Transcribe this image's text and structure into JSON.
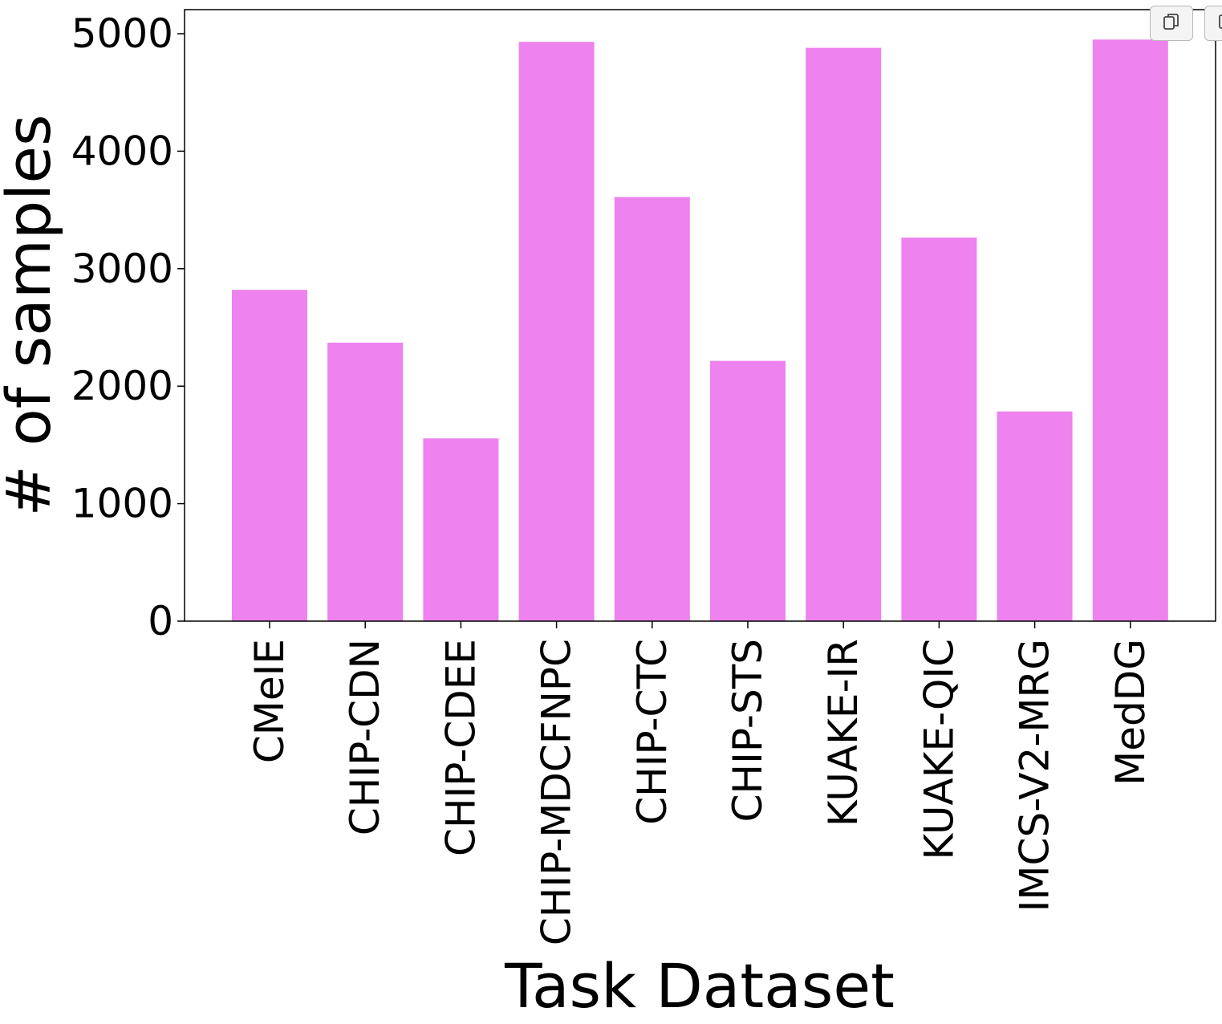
{
  "chart_data": {
    "type": "bar",
    "title": "",
    "xlabel": "Task Dataset",
    "ylabel": "# of samples",
    "categories": [
      "CMeIE",
      "CHIP-CDN",
      "CHIP-CDEE",
      "CHIP-MDCFNPC",
      "CHIP-CTC",
      "CHIP-STS",
      "KUAKE-IR",
      "KUAKE-QIC",
      "IMCS-V2-MRG",
      "MedDG"
    ],
    "values": [
      2820,
      2370,
      1555,
      4930,
      3610,
      2215,
      4880,
      3265,
      1785,
      4950
    ],
    "ylim": [
      0,
      5200
    ],
    "yticks": [
      0,
      1000,
      2000,
      3000,
      4000,
      5000
    ],
    "ytick_labels": [
      "0",
      "1000",
      "2000",
      "3000",
      "4000",
      "5000"
    ],
    "bar_color": "#ee82ee",
    "grid": false,
    "legend": "none"
  },
  "toolbar": {
    "icons": [
      "copy-icon",
      "expand-icon"
    ]
  }
}
